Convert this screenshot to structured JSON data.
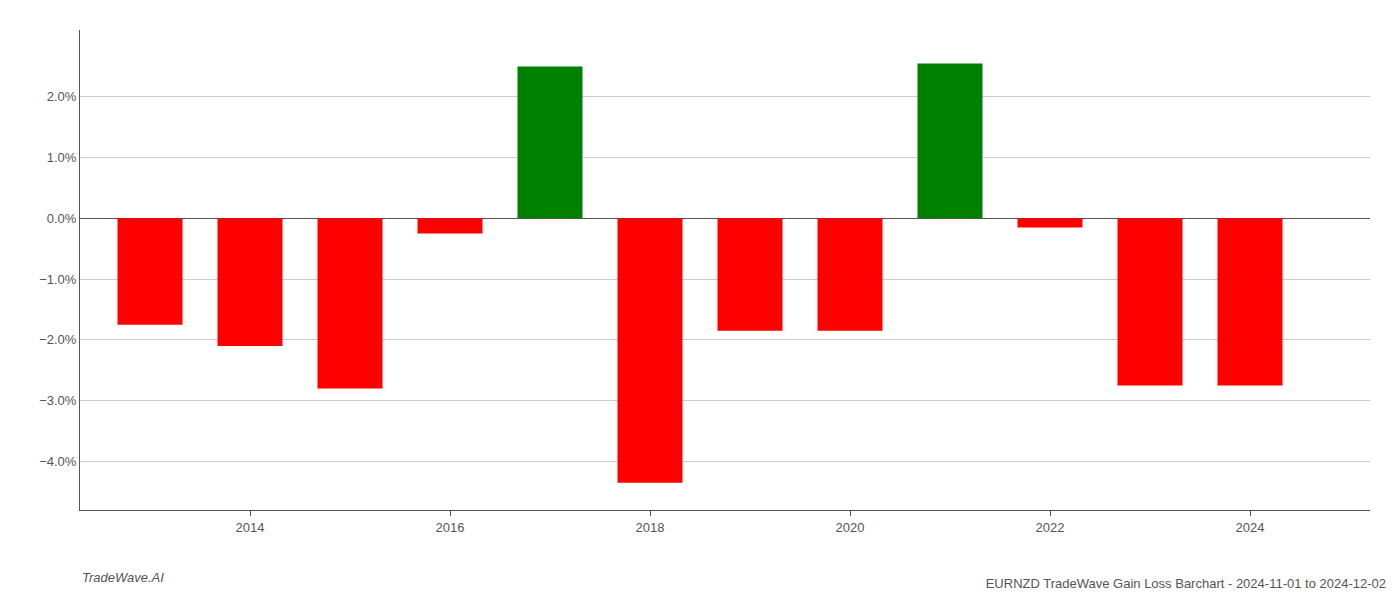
{
  "chart_data": {
    "type": "bar",
    "title": "EURNZD TradeWave Gain Loss Barchart - 2024-11-01 to 2024-12-02",
    "annotations": [
      "TradeWave.AI"
    ],
    "x": [
      2013,
      2014,
      2015,
      2016,
      2017,
      2018,
      2019,
      2020,
      2021,
      2022,
      2023,
      2024
    ],
    "values": [
      -1.75,
      -2.1,
      -2.8,
      -0.25,
      2.5,
      -4.35,
      -1.85,
      -1.85,
      2.55,
      -0.15,
      -2.75,
      -2.75
    ],
    "colors": [
      "#ff0000",
      "#ff0000",
      "#ff0000",
      "#ff0000",
      "#008000",
      "#ff0000",
      "#ff0000",
      "#ff0000",
      "#008000",
      "#ff0000",
      "#ff0000",
      "#ff0000"
    ],
    "xlim": [
      2012.3,
      2025.2
    ],
    "xticks": [
      2014,
      2016,
      2018,
      2020,
      2022,
      2024
    ],
    "ylim": [
      -4.8,
      3.1
    ],
    "yticks": [
      {
        "value": -4.0,
        "label": "−4.0%"
      },
      {
        "value": -3.0,
        "label": "−3.0%"
      },
      {
        "value": -2.0,
        "label": "−2.0%"
      },
      {
        "value": -1.0,
        "label": "−1.0%"
      },
      {
        "value": 0.0,
        "label": "0.0%"
      },
      {
        "value": 1.0,
        "label": "1.0%"
      },
      {
        "value": 2.0,
        "label": "2.0%"
      }
    ],
    "grid": true
  }
}
